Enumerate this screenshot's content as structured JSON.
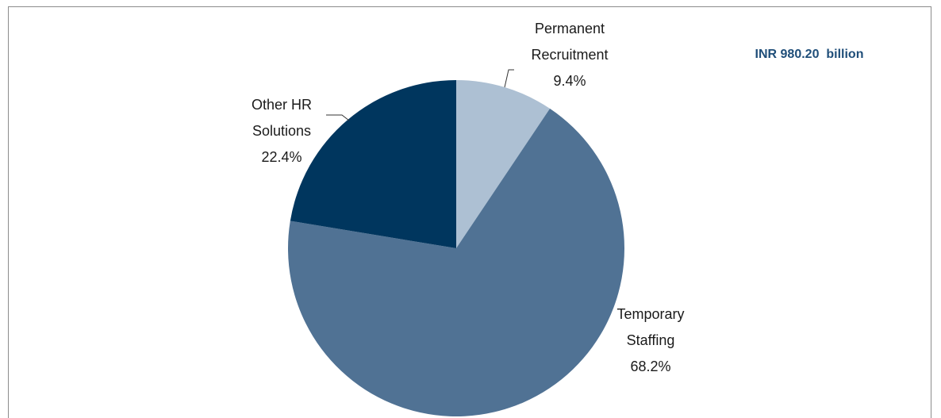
{
  "chart_data": {
    "type": "pie",
    "categories": [
      "Permanent Recruitment",
      "Temporary Staffing",
      "Other HR Solutions"
    ],
    "values": [
      9.4,
      68.2,
      22.4
    ],
    "value_labels": [
      "9.4%",
      "68.2%",
      "22.4%"
    ],
    "colors": [
      "#adc0d3",
      "#507294",
      "#00365e"
    ],
    "annotation": "INR 980.20  billion"
  }
}
